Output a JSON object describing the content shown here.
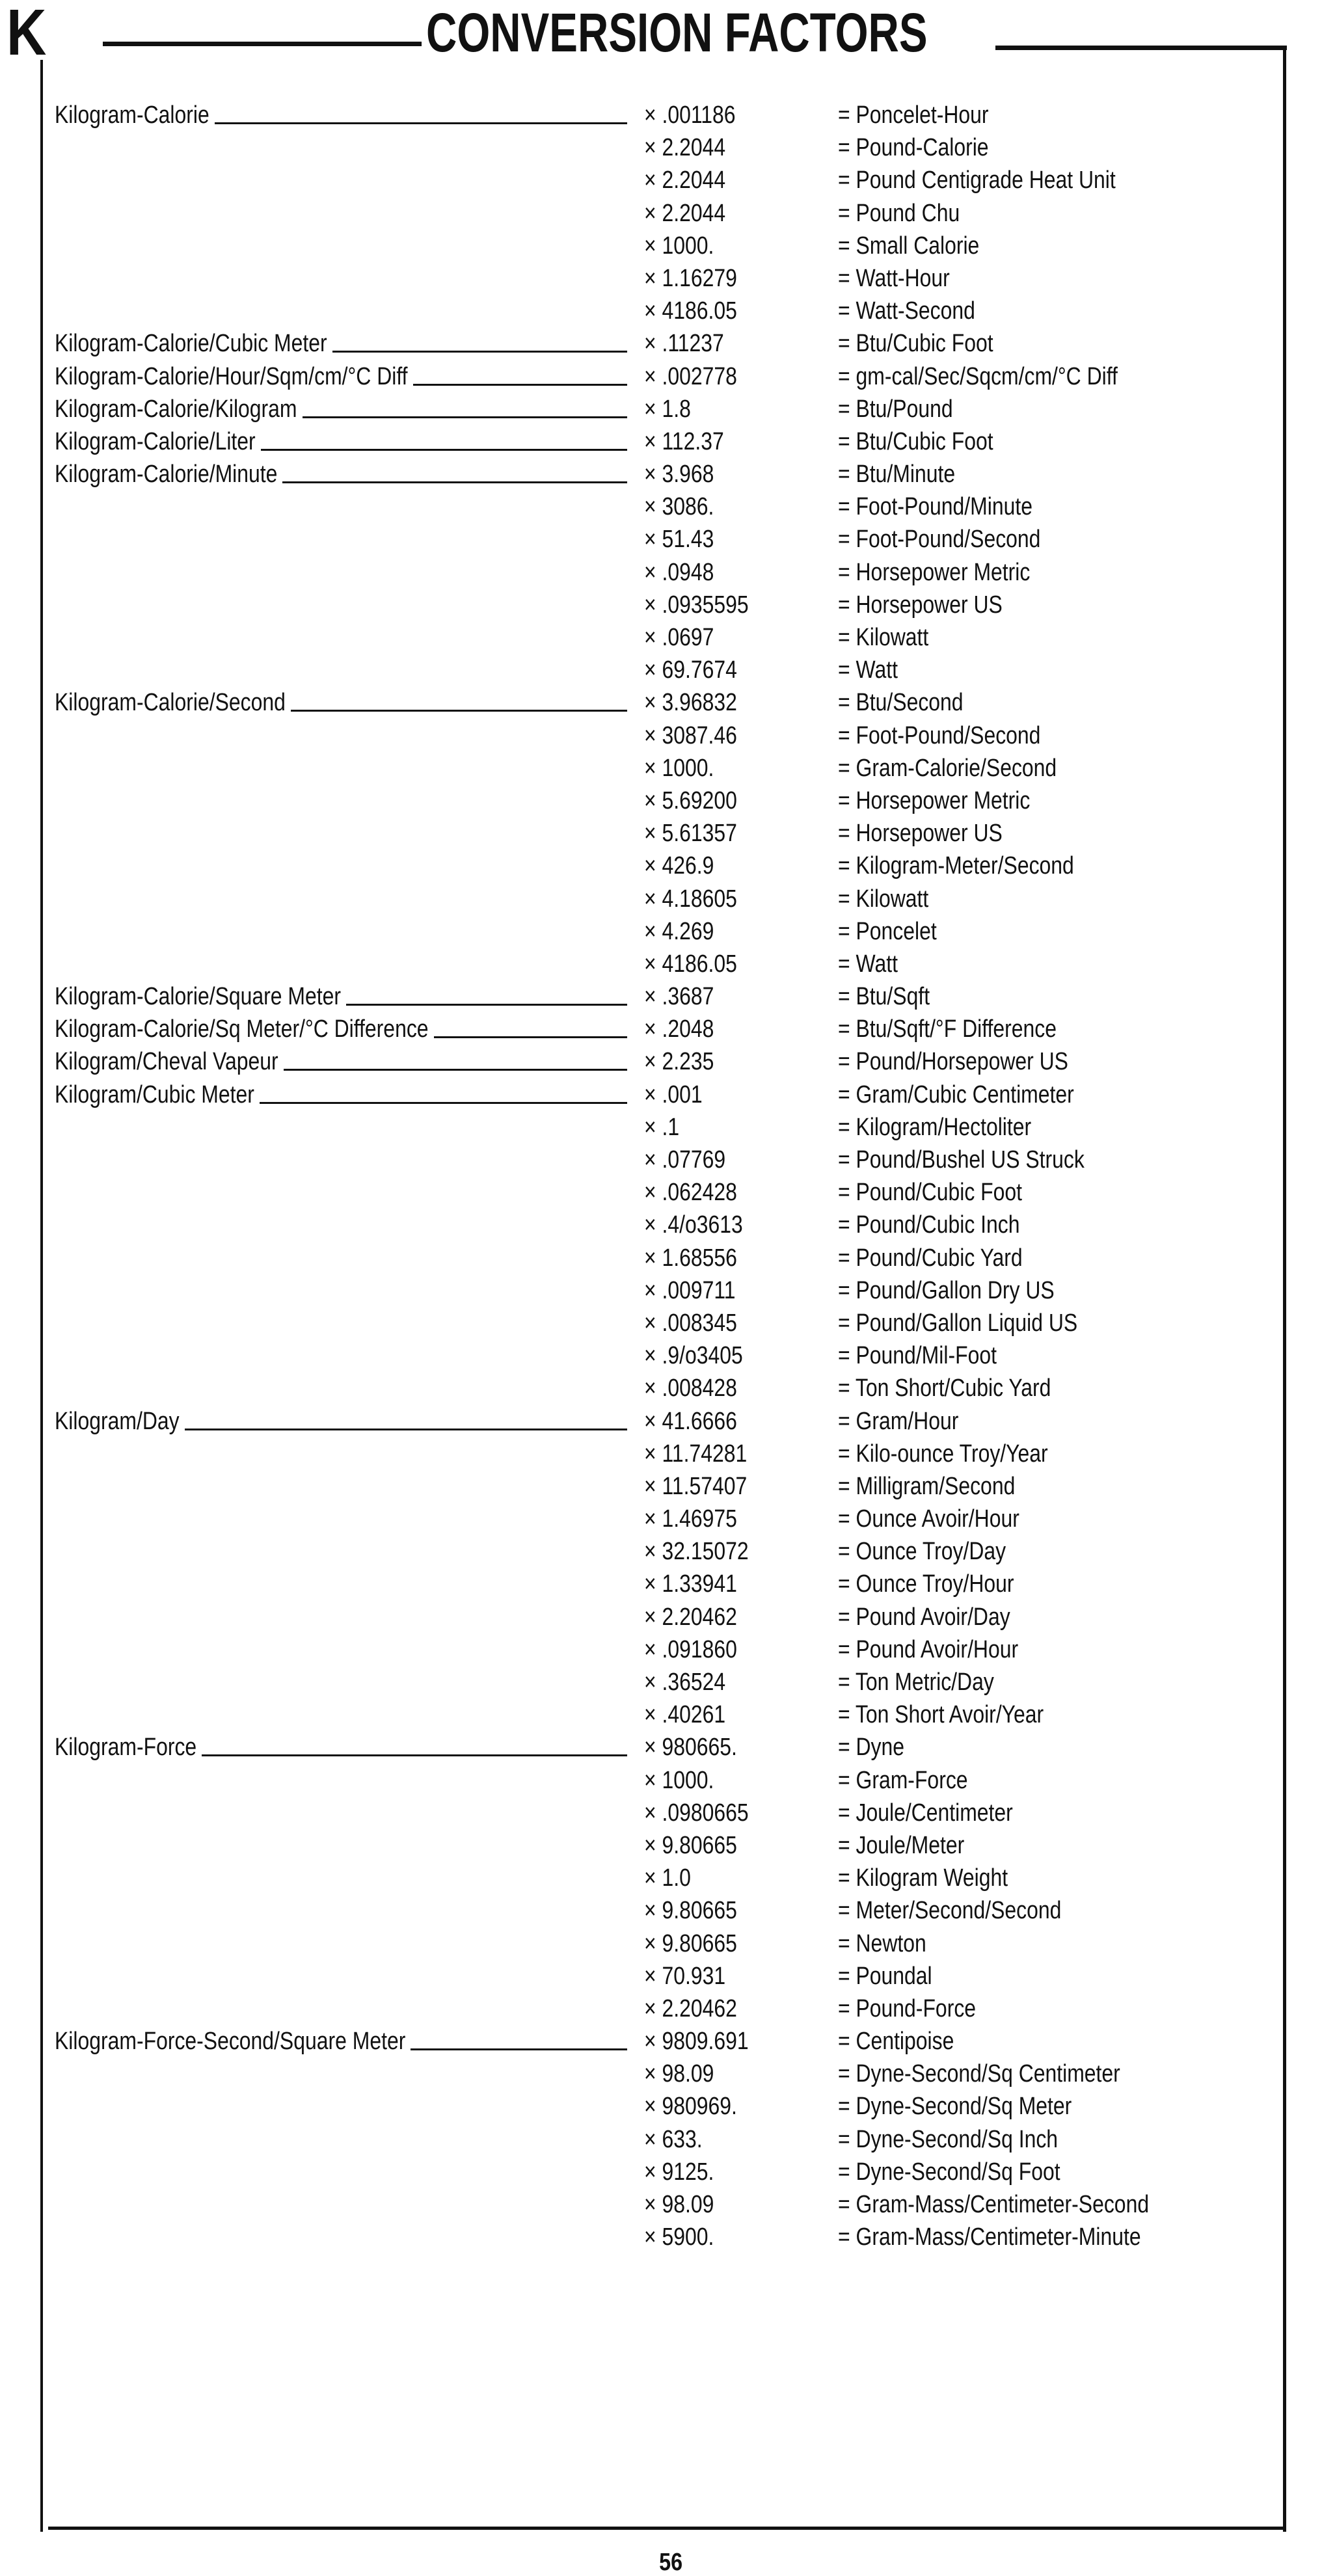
{
  "header": {
    "letter": "K",
    "title": "CONVERSION FACTORS"
  },
  "page_number": "56",
  "groups": [
    {
      "name": "Kilogram-Calorie",
      "rows": [
        [
          "× .001186",
          "= Poncelet-Hour"
        ],
        [
          "× 2.2044",
          "= Pound-Calorie"
        ],
        [
          "× 2.2044",
          "= Pound Centigrade Heat Unit"
        ],
        [
          "× 2.2044",
          "= Pound Chu"
        ],
        [
          "× 1000.",
          "= Small Calorie"
        ],
        [
          "× 1.16279",
          "= Watt-Hour"
        ],
        [
          "× 4186.05",
          "= Watt-Second"
        ]
      ]
    },
    {
      "name": "Kilogram-Calorie/Cubic Meter",
      "rows": [
        [
          "× .11237",
          "= Btu/Cubic Foot"
        ]
      ]
    },
    {
      "name": "Kilogram-Calorie/Hour/Sqm/cm/°C Diff",
      "rows": [
        [
          "× .002778",
          "= gm-cal/Sec/Sqcm/cm/°C Diff"
        ]
      ]
    },
    {
      "name": "Kilogram-Calorie/Kilogram",
      "rows": [
        [
          "× 1.8",
          "= Btu/Pound"
        ]
      ]
    },
    {
      "name": "Kilogram-Calorie/Liter",
      "rows": [
        [
          "× 112.37",
          "= Btu/Cubic Foot"
        ]
      ]
    },
    {
      "name": "Kilogram-Calorie/Minute",
      "rows": [
        [
          "× 3.968",
          "= Btu/Minute"
        ],
        [
          "× 3086.",
          "= Foot-Pound/Minute"
        ],
        [
          "× 51.43",
          "= Foot-Pound/Second"
        ],
        [
          "× .0948",
          "= Horsepower Metric"
        ],
        [
          "× .0935595",
          "= Horsepower US"
        ],
        [
          "× .0697",
          "= Kilowatt"
        ],
        [
          "× 69.7674",
          "= Watt"
        ]
      ]
    },
    {
      "name": "Kilogram-Calorie/Second",
      "rows": [
        [
          "× 3.96832",
          "= Btu/Second"
        ],
        [
          "× 3087.46",
          "= Foot-Pound/Second"
        ],
        [
          "× 1000.",
          "= Gram-Calorie/Second"
        ],
        [
          "× 5.69200",
          "= Horsepower Metric"
        ],
        [
          "× 5.61357",
          "= Horsepower US"
        ],
        [
          "× 426.9",
          "= Kilogram-Meter/Second"
        ],
        [
          "× 4.18605",
          "= Kilowatt"
        ],
        [
          "× 4.269",
          "= Poncelet"
        ],
        [
          "× 4186.05",
          "= Watt"
        ]
      ]
    },
    {
      "name": "Kilogram-Calorie/Square Meter",
      "rows": [
        [
          "× .3687",
          "= Btu/Sqft"
        ]
      ]
    },
    {
      "name": "Kilogram-Calorie/Sq Meter/°C Difference",
      "rows": [
        [
          "× .2048",
          "= Btu/Sqft/°F Difference"
        ]
      ]
    },
    {
      "name": "Kilogram/Cheval Vapeur",
      "rows": [
        [
          "× 2.235",
          "= Pound/Horsepower US"
        ]
      ]
    },
    {
      "name": "Kilogram/Cubic Meter",
      "rows": [
        [
          "× .001",
          "= Gram/Cubic Centimeter"
        ],
        [
          "× .1",
          "= Kilogram/Hectoliter"
        ],
        [
          "× .07769",
          "= Pound/Bushel US Struck"
        ],
        [
          "× .062428",
          "= Pound/Cubic Foot"
        ],
        [
          "× .4/o3613",
          "= Pound/Cubic Inch"
        ],
        [
          "× 1.68556",
          "= Pound/Cubic Yard"
        ],
        [
          "× .009711",
          "= Pound/Gallon Dry US"
        ],
        [
          "× .008345",
          "= Pound/Gallon Liquid US"
        ],
        [
          "× .9/o3405",
          "= Pound/Mil-Foot"
        ],
        [
          "× .008428",
          "= Ton Short/Cubic Yard"
        ]
      ]
    },
    {
      "name": "Kilogram/Day",
      "rows": [
        [
          "× 41.6666",
          "= Gram/Hour"
        ],
        [
          "× 11.74281",
          "= Kilo-ounce Troy/Year"
        ],
        [
          "× 11.57407",
          "= Milligram/Second"
        ],
        [
          "× 1.46975",
          "= Ounce Avoir/Hour"
        ],
        [
          "× 32.15072",
          "= Ounce Troy/Day"
        ],
        [
          "× 1.33941",
          "= Ounce Troy/Hour"
        ],
        [
          "× 2.20462",
          "= Pound Avoir/Day"
        ],
        [
          "× .091860",
          "= Pound Avoir/Hour"
        ],
        [
          "× .36524",
          "= Ton Metric/Day"
        ],
        [
          "× .40261",
          "= Ton Short Avoir/Year"
        ]
      ]
    },
    {
      "name": "Kilogram-Force",
      "rows": [
        [
          "× 980665.",
          "= Dyne"
        ],
        [
          "× 1000.",
          "= Gram-Force"
        ],
        [
          "× .0980665",
          "= Joule/Centimeter"
        ],
        [
          "× 9.80665",
          "= Joule/Meter"
        ],
        [
          "× 1.0",
          "= Kilogram Weight"
        ],
        [
          "× 9.80665",
          "= Meter/Second/Second"
        ],
        [
          "× 9.80665",
          "= Newton"
        ],
        [
          "× 70.931",
          "= Poundal"
        ],
        [
          "× 2.20462",
          "= Pound-Force"
        ]
      ]
    },
    {
      "name": "Kilogram-Force-Second/Square Meter",
      "rows": [
        [
          "× 9809.691",
          "= Centipoise"
        ],
        [
          "× 98.09",
          "= Dyne-Second/Sq Centimeter"
        ],
        [
          "× 980969.",
          "= Dyne-Second/Sq Meter"
        ],
        [
          "× 633.",
          "= Dyne-Second/Sq Inch"
        ],
        [
          "× 9125.",
          "= Dyne-Second/Sq Foot"
        ],
        [
          "× 98.09",
          "= Gram-Mass/Centimeter-Second"
        ],
        [
          "× 5900.",
          "= Gram-Mass/Centimeter-Minute"
        ]
      ]
    }
  ]
}
